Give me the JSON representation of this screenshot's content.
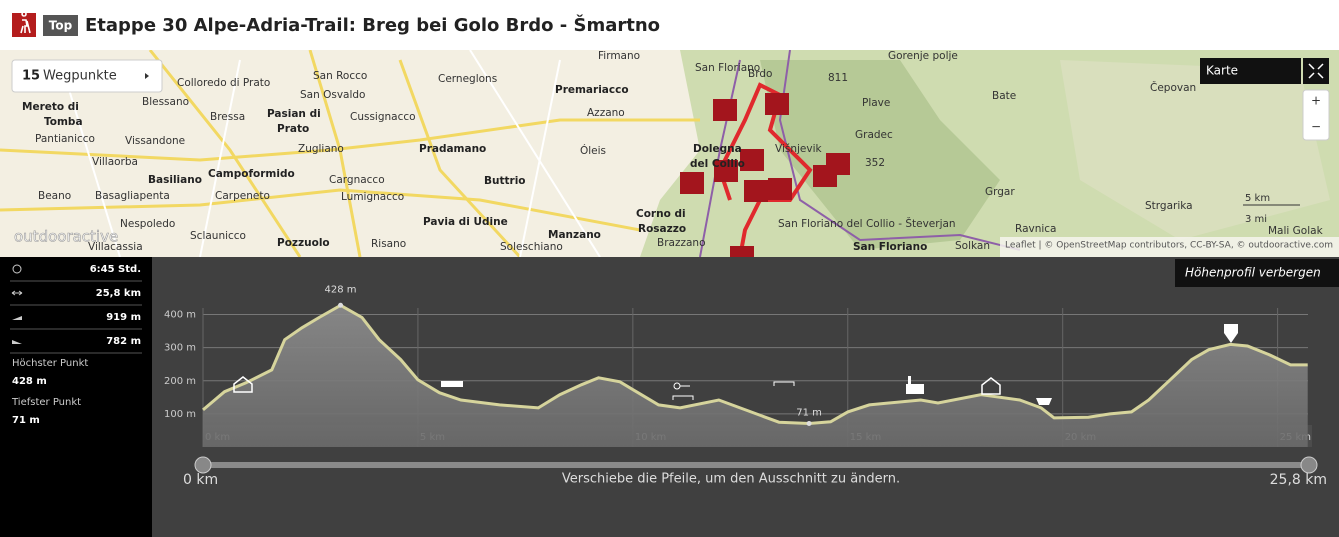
{
  "header": {
    "badge": "Top",
    "title": "Etappe 30 Alpe-Adria-Trail: Breg bei Golo Brdo - Šmartno"
  },
  "map": {
    "waypoints_count": 15,
    "waypoints_label": "Wegpunkte",
    "layer_button": "Karte",
    "zoom_in": "+",
    "zoom_out": "−",
    "scale_km": "5 km",
    "scale_mi": "3 mi",
    "watermark": "outdooractive",
    "attribution": "Leaflet | © OpenStreetMap contributors, CC-BY-SA, © outdooractive.com",
    "labels": [
      "Colloredo di Prato",
      "San Rocco",
      "Cerneglons",
      "Premariacco",
      "Firmano",
      "San Floriano",
      "Brdo",
      "Gorenje polje",
      "Bate",
      "Čepovan",
      "Mereto di",
      "Tomba",
      "Blessano",
      "San Osvaldo",
      "Bressa",
      "Pasian di",
      "Prato",
      "Cussignacco",
      "Azzano",
      "Plave",
      "Pantianicco",
      "Vissandone",
      "Zugliano",
      "Pradamano",
      "Óleis",
      "Dolegna",
      "del Collio",
      "Višnjevik",
      "Gradec",
      "352",
      "Villaorba",
      "Basiliano",
      "Campoformido",
      "Cargnacco",
      "Buttrio",
      "Grgar",
      "Beano",
      "Basagliapenta",
      "Carpeneto",
      "Lumignacco",
      "Nespoledo",
      "Pavia di Udine",
      "Corno di",
      "Rosazzo",
      "San Floriano del Collio - Števerjan",
      "Strgarika",
      "Ravnica",
      "Sclaunicco",
      "Manzano",
      "Brazzano",
      "Villacassia",
      "Pozzuolo",
      "Risano",
      "Soleschiano",
      "San Floriano",
      "Solkan",
      "Mali Golak",
      "811"
    ]
  },
  "stats": {
    "duration": "6:45 Std.",
    "distance": "25,8 km",
    "ascent": "919 m",
    "descent": "782 m",
    "highest_label": "Höchster Punkt",
    "highest": "428 m",
    "lowest_label": "Tiefster Punkt",
    "lowest": "71 m"
  },
  "chart_data": {
    "type": "area",
    "toggle": "Höhenprofil verbergen",
    "x": [
      0.0,
      0.5,
      1.0,
      1.6,
      1.9,
      2.3,
      2.7,
      3.2,
      3.7,
      4.1,
      4.6,
      5.0,
      5.5,
      6.0,
      6.9,
      7.8,
      8.3,
      8.8,
      9.2,
      9.7,
      10.2,
      10.6,
      11.1,
      12.0,
      13.0,
      13.4,
      14.1,
      14.6,
      15.0,
      15.5,
      16.7,
      17.1,
      18.1,
      19.0,
      19.5,
      19.8,
      20.6,
      21.1,
      21.6,
      22.0,
      22.5,
      23.0,
      23.4,
      23.9,
      24.3,
      24.8,
      25.3,
      25.7
    ],
    "values": [
      112,
      167,
      194,
      233,
      324,
      360,
      391,
      428,
      391,
      324,
      264,
      203,
      164,
      142,
      127,
      118,
      158,
      188,
      209,
      197,
      158,
      127,
      118,
      142,
      94,
      75,
      71,
      76,
      106,
      127,
      142,
      133,
      158,
      142,
      118,
      88,
      90,
      100,
      106,
      142,
      203,
      264,
      294,
      310,
      305,
      279,
      248,
      248
    ],
    "color": "#d6d49c",
    "xlim": [
      0,
      25.8
    ],
    "ylim": [
      0,
      450
    ],
    "xticks": [
      {
        "value": 0,
        "label": "0 km"
      },
      {
        "value": 5,
        "label": "5 km"
      },
      {
        "value": 10,
        "label": "10 km"
      },
      {
        "value": 15,
        "label": "15 km"
      },
      {
        "value": 20,
        "label": "20 km"
      },
      {
        "value": 25,
        "label": "25 km"
      }
    ],
    "yticks": [
      {
        "value": 100,
        "label": "100 m"
      },
      {
        "value": 200,
        "label": "200 m"
      },
      {
        "value": 300,
        "label": "300 m"
      },
      {
        "value": 400,
        "label": "400 m"
      }
    ],
    "grid": true,
    "annotations": [
      {
        "x": 3.2,
        "value": 428,
        "label": "428 m"
      },
      {
        "x": 14.1,
        "value": 71,
        "label": "71 m"
      }
    ],
    "slider": {
      "start": "0 km",
      "hint": "Verschiebe die Pfeile, um den Ausschnitt zu ändern.",
      "end": "25,8 km"
    }
  }
}
